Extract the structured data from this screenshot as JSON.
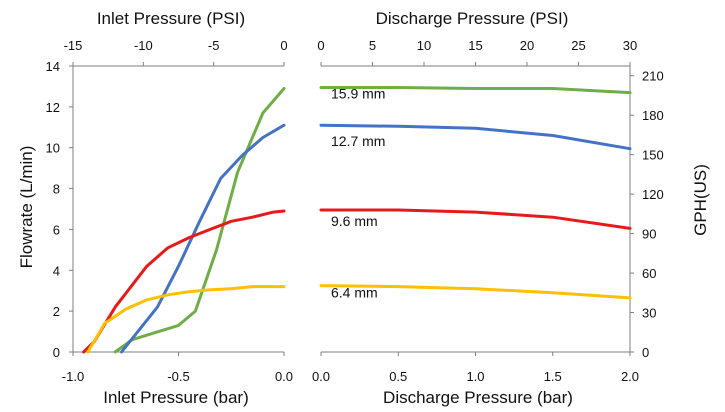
{
  "chart_data": [
    {
      "type": "line",
      "xlabel": "Inlet Pressure (bar)",
      "ylabel": "Flowrate (L/min)",
      "x2label": "Inlet Pressure (PSI)",
      "xlim": [
        -1.0,
        0.0
      ],
      "ylim": [
        0,
        14
      ],
      "x2lim": [
        -15,
        0
      ],
      "xticks": [
        -1.0,
        -0.5,
        0.0
      ],
      "xtick_labels": [
        "-1.0",
        "-0.5",
        "0.0"
      ],
      "x2ticks": [
        -15,
        -10,
        -5,
        0
      ],
      "x2tick_labels": [
        "-15",
        "-10",
        "-5",
        "0"
      ],
      "yticks": [
        0,
        2,
        4,
        6,
        8,
        10,
        12,
        14
      ],
      "ytick_labels": [
        "0",
        "2",
        "4",
        "6",
        "8",
        "10",
        "12",
        "14"
      ],
      "grid": false,
      "series": [
        {
          "color": "#70AD47",
          "x": [
            -0.8,
            -0.72,
            -0.5,
            -0.42,
            -0.32,
            -0.22,
            -0.1,
            0.0
          ],
          "y": [
            0,
            0.6,
            1.3,
            2.0,
            5.0,
            8.8,
            11.7,
            12.9
          ]
        },
        {
          "color": "#4472C4",
          "x": [
            -0.77,
            -0.6,
            -0.5,
            -0.4,
            -0.3,
            -0.2,
            -0.1,
            0.0
          ],
          "y": [
            0,
            2.2,
            4.2,
            6.4,
            8.5,
            9.6,
            10.5,
            11.1
          ]
        },
        {
          "color": "#E8191A",
          "x": [
            -0.95,
            -0.9,
            -0.8,
            -0.65,
            -0.55,
            -0.45,
            -0.35,
            -0.25,
            -0.15,
            -0.05,
            0.0
          ],
          "y": [
            0,
            0.5,
            2.2,
            4.2,
            5.1,
            5.6,
            6.0,
            6.4,
            6.6,
            6.85,
            6.9
          ]
        },
        {
          "color": "#FFC000",
          "x": [
            -0.93,
            -0.85,
            -0.75,
            -0.65,
            -0.55,
            -0.45,
            -0.35,
            -0.25,
            -0.15,
            -0.05,
            0.0
          ],
          "y": [
            0,
            1.4,
            2.1,
            2.55,
            2.8,
            2.95,
            3.05,
            3.1,
            3.2,
            3.2,
            3.2
          ]
        }
      ]
    },
    {
      "type": "line",
      "xlabel": "Discharge Pressure (bar)",
      "ylabel": "GPH(US)",
      "x2label": "Discharge Pressure (PSI)",
      "xlim": [
        0.0,
        2.0
      ],
      "ylim": [
        0,
        14
      ],
      "x2lim": [
        0,
        30
      ],
      "xticks": [
        0.0,
        0.5,
        1.0,
        1.5,
        2.0
      ],
      "xtick_labels": [
        "0.0",
        "0.5",
        "1.0",
        "1.5",
        "2.0"
      ],
      "x2ticks": [
        0,
        5,
        10,
        15,
        20,
        25,
        30
      ],
      "x2tick_labels": [
        "0",
        "5",
        "10",
        "15",
        "20",
        "25",
        "30"
      ],
      "y2ticks": [
        0,
        30,
        60,
        90,
        120,
        150,
        180,
        210
      ],
      "y2tick_labels": [
        "0",
        "30",
        "60",
        "90",
        "120",
        "150",
        "180",
        "210"
      ],
      "grid": false,
      "series": [
        {
          "name": "15.9 mm",
          "color": "#70AD47",
          "x": [
            0.0,
            0.5,
            1.0,
            1.5,
            2.0
          ],
          "y": [
            12.95,
            12.95,
            12.9,
            12.9,
            12.7
          ]
        },
        {
          "name": "12.7 mm",
          "color": "#4472C4",
          "x": [
            0.0,
            0.5,
            1.0,
            1.5,
            2.0
          ],
          "y": [
            11.1,
            11.05,
            10.95,
            10.6,
            9.95
          ]
        },
        {
          "name": "9.6 mm",
          "color": "#E8191A",
          "x": [
            0.0,
            0.5,
            1.0,
            1.5,
            2.0
          ],
          "y": [
            6.95,
            6.95,
            6.85,
            6.6,
            6.05
          ]
        },
        {
          "name": "6.4 mm",
          "color": "#FFC000",
          "x": [
            0.0,
            0.5,
            1.0,
            1.5,
            2.0
          ],
          "y": [
            3.25,
            3.2,
            3.1,
            2.9,
            2.65
          ]
        }
      ]
    }
  ]
}
